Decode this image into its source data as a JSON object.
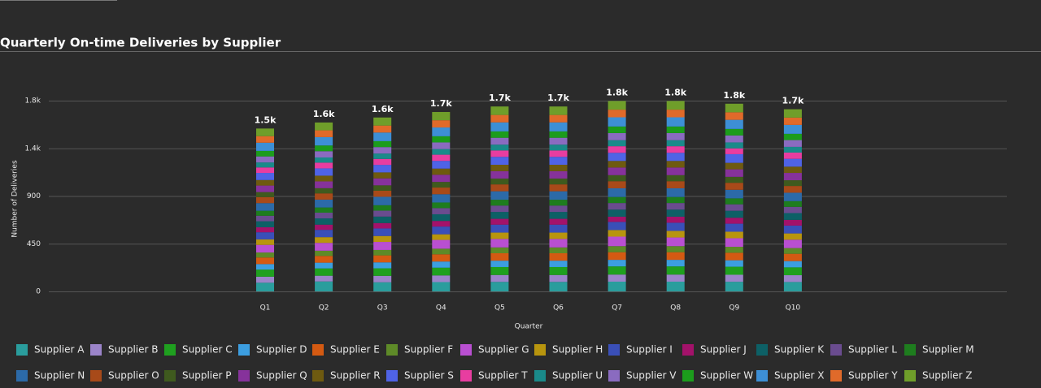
{
  "chart_data": {
    "type": "stacked_bar",
    "title": "Quarterly On-time Deliveries by Supplier",
    "x_label": "Quarter",
    "y_label": "Number of Deliveries",
    "categories": [
      "Q1",
      "Q2",
      "Q3",
      "Q4",
      "Q5",
      "Q6",
      "Q7",
      "Q8",
      "Q9",
      "Q10"
    ],
    "total_labels": [
      "1.5k",
      "1.6k",
      "1.6k",
      "1.7k",
      "1.7k",
      "1.7k",
      "1.8k",
      "1.8k",
      "1.8k",
      "1.7k"
    ],
    "ylim": [
      0,
      1800
    ],
    "yticks": [
      0,
      450,
      900,
      {
        "value": 1350,
        "label": "1.4k"
      },
      {
        "value": 1800,
        "label": "1.8k"
      }
    ],
    "grid": true,
    "series": [
      {
        "name": "Supplier A",
        "color": "#2a9d9d",
        "values": [
          82,
          94,
          86,
          88,
          90,
          90,
          92,
          92,
          91,
          89
        ]
      },
      {
        "name": "Supplier B",
        "color": "#9b84c9",
        "values": [
          57,
          54,
          61,
          63,
          65,
          65,
          67,
          67,
          66,
          64
        ]
      },
      {
        "name": "Supplier C",
        "color": "#1fa01f",
        "values": [
          67,
          69,
          71,
          73,
          75,
          75,
          77,
          77,
          76,
          74
        ]
      },
      {
        "name": "Supplier D",
        "color": "#3c9ee0",
        "values": [
          52,
          54,
          56,
          58,
          60,
          60,
          62,
          62,
          61,
          59
        ]
      },
      {
        "name": "Supplier E",
        "color": "#d45a12",
        "values": [
          62,
          64,
          66,
          68,
          70,
          70,
          72,
          72,
          71,
          69
        ]
      },
      {
        "name": "Supplier F",
        "color": "#5e8a28",
        "values": [
          47,
          49,
          51,
          53,
          55,
          55,
          57,
          57,
          56,
          54
        ]
      },
      {
        "name": "Supplier G",
        "color": "#b94fd1",
        "values": [
          72,
          74,
          76,
          83,
          80,
          80,
          90,
          82,
          81,
          79
        ]
      },
      {
        "name": "Supplier H",
        "color": "#b8950e",
        "values": [
          52,
          54,
          56,
          53,
          60,
          60,
          62,
          62,
          61,
          59
        ]
      },
      {
        "name": "Supplier I",
        "color": "#3a4fb8",
        "values": [
          67,
          69,
          71,
          73,
          75,
          75,
          77,
          77,
          76,
          74
        ]
      },
      {
        "name": "Supplier J",
        "color": "#a3126a",
        "values": [
          47,
          49,
          51,
          53,
          55,
          55,
          49,
          57,
          56,
          54
        ]
      },
      {
        "name": "Supplier K",
        "color": "#0d6066",
        "values": [
          57,
          59,
          61,
          63,
          65,
          65,
          67,
          67,
          66,
          64
        ]
      },
      {
        "name": "Supplier L",
        "color": "#6a4c8f",
        "values": [
          52,
          54,
          56,
          58,
          60,
          60,
          62,
          62,
          61,
          59
        ]
      },
      {
        "name": "Supplier M",
        "color": "#1e7d1e",
        "values": [
          47,
          49,
          51,
          53,
          55,
          55,
          57,
          57,
          56,
          54
        ]
      },
      {
        "name": "Supplier N",
        "color": "#2c6aa8",
        "values": [
          72,
          74,
          80,
          78,
          80,
          80,
          82,
          82,
          81,
          79
        ]
      },
      {
        "name": "Supplier O",
        "color": "#a84a19",
        "values": [
          57,
          59,
          57,
          63,
          65,
          65,
          67,
          67,
          66,
          64
        ]
      },
      {
        "name": "Supplier P",
        "color": "#3f5a1e",
        "values": [
          47,
          49,
          51,
          53,
          55,
          55,
          57,
          57,
          56,
          54
        ]
      },
      {
        "name": "Supplier Q",
        "color": "#86329b",
        "values": [
          62,
          64,
          66,
          68,
          70,
          70,
          72,
          72,
          71,
          69
        ]
      },
      {
        "name": "Supplier R",
        "color": "#6e5a10",
        "values": [
          52,
          54,
          56,
          58,
          60,
          60,
          62,
          62,
          61,
          59
        ]
      },
      {
        "name": "Supplier S",
        "color": "#4f63e6",
        "values": [
          67,
          69,
          71,
          73,
          75,
          75,
          77,
          77,
          82,
          74
        ]
      },
      {
        "name": "Supplier T",
        "color": "#e83da0",
        "values": [
          52,
          54,
          56,
          58,
          60,
          60,
          62,
          62,
          55,
          59
        ]
      },
      {
        "name": "Supplier U",
        "color": "#1a8a8a",
        "values": [
          47,
          49,
          51,
          53,
          55,
          55,
          57,
          57,
          56,
          54
        ]
      },
      {
        "name": "Supplier V",
        "color": "#8a6bc0",
        "values": [
          57,
          59,
          61,
          63,
          65,
          65,
          67,
          67,
          66,
          64
        ]
      },
      {
        "name": "Supplier W",
        "color": "#1c9c1c",
        "values": [
          52,
          54,
          56,
          58,
          60,
          60,
          62,
          62,
          61,
          59
        ]
      },
      {
        "name": "Supplier X",
        "color": "#3d8fd6",
        "values": [
          77,
          79,
          81,
          83,
          85,
          85,
          87,
          87,
          86,
          84
        ]
      },
      {
        "name": "Supplier Y",
        "color": "#e06a2a",
        "values": [
          62,
          64,
          66,
          68,
          70,
          70,
          72,
          72,
          71,
          69
        ]
      },
      {
        "name": "Supplier Z",
        "color": "#6f9e2a",
        "values": [
          72,
          74,
          76,
          78,
          80,
          80,
          82,
          82,
          81,
          79
        ]
      }
    ]
  }
}
